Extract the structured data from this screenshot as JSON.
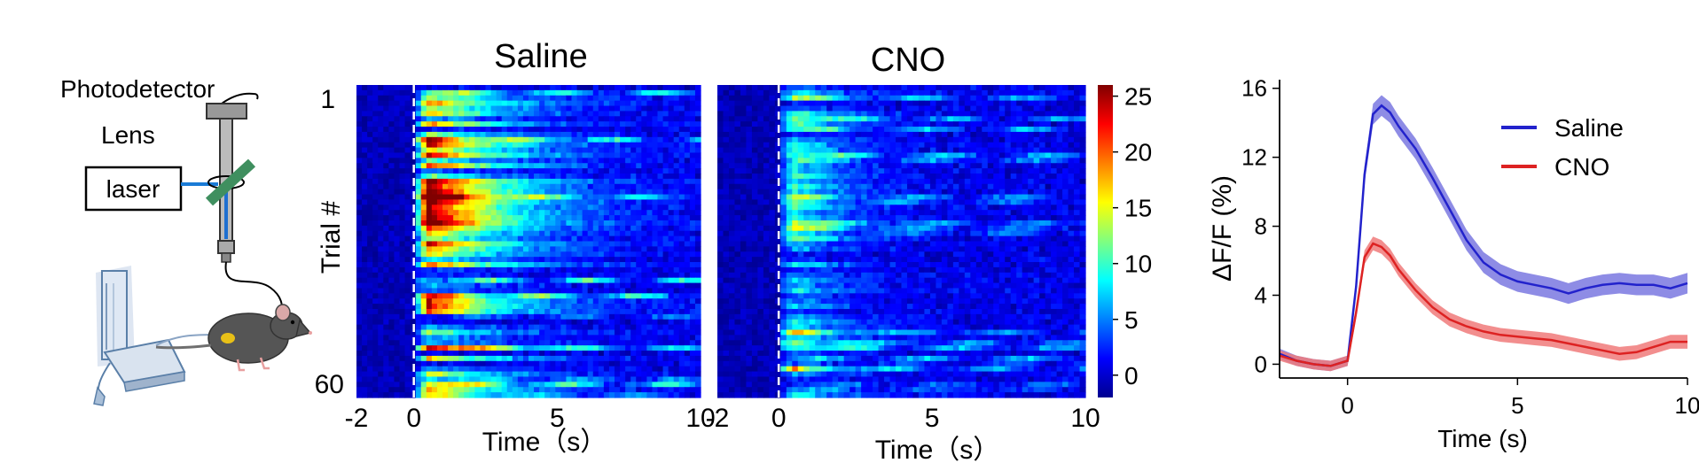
{
  "setup": {
    "photodetector_label": "Photodetector",
    "lens_label": "Lens",
    "laser_label": "laser"
  },
  "colors": {
    "laser_line": "#1a7bd6",
    "filter": "#3f8f5f",
    "saline_line": "#2222cc",
    "saline_band": "#7a78e0",
    "cno_line": "#dd2222",
    "cno_band": "#f07a7a",
    "mouse_body": "#555555",
    "fiber_tube": "#1e6fd0"
  },
  "chart_data": [
    {
      "type": "heatmap",
      "title": "Saline",
      "xlabel": "Time（s）",
      "ylabel": "Trial #",
      "xlim": [
        -2,
        10
      ],
      "x_ticks": [
        -2,
        0,
        5,
        10
      ],
      "y_tick_labels": [
        "1",
        "60"
      ],
      "rows": 60,
      "stimulus_line_x": 0
    },
    {
      "type": "heatmap",
      "title": "CNO",
      "xlabel": "Time（s）",
      "xlim": [
        -2,
        10
      ],
      "x_ticks": [
        -2,
        0,
        5,
        10
      ],
      "rows": 60,
      "stimulus_line_x": 0
    },
    {
      "type": "colorbar",
      "colormap": "jet",
      "range": [
        -2,
        26
      ],
      "ticks": [
        0,
        5,
        10,
        15,
        20,
        25
      ]
    },
    {
      "type": "line",
      "xlabel": "Time (s)",
      "ylabel": "ΔF/F (%)",
      "xlim": [
        -2,
        10
      ],
      "ylim": [
        -0.8,
        16.5
      ],
      "x_ticks": [
        0,
        5,
        10
      ],
      "y_ticks": [
        0,
        4,
        8,
        12,
        16
      ],
      "legend_position": "top-right",
      "series": [
        {
          "name": "Saline",
          "x": [
            -2,
            -1.5,
            -1,
            -0.5,
            0,
            0.25,
            0.5,
            0.75,
            1,
            1.25,
            1.5,
            2,
            2.5,
            3,
            3.5,
            4,
            4.5,
            5,
            5.5,
            6,
            6.5,
            7,
            7.5,
            8,
            8.5,
            9,
            9.5,
            10
          ],
          "y": [
            0.6,
            0.2,
            0.0,
            -0.1,
            0.2,
            4.5,
            11.0,
            14.5,
            15.0,
            14.6,
            13.8,
            12.5,
            10.8,
            9.0,
            7.2,
            5.9,
            5.2,
            4.8,
            4.6,
            4.4,
            4.1,
            4.4,
            4.6,
            4.7,
            4.6,
            4.6,
            4.4,
            4.7
          ],
          "error": [
            0.3,
            0.3,
            0.3,
            0.3,
            0.3,
            0.4,
            0.5,
            0.6,
            0.6,
            0.6,
            0.6,
            0.6,
            0.6,
            0.6,
            0.6,
            0.6,
            0.6,
            0.6,
            0.6,
            0.6,
            0.6,
            0.6,
            0.6,
            0.6,
            0.6,
            0.6,
            0.6,
            0.6
          ]
        },
        {
          "name": "CNO",
          "x": [
            -2,
            -1.5,
            -1,
            -0.5,
            0,
            0.25,
            0.5,
            0.75,
            1,
            1.25,
            1.5,
            2,
            2.5,
            3,
            3.5,
            4,
            4.5,
            5,
            5.5,
            6,
            6.5,
            7,
            7.5,
            8,
            8.5,
            9,
            9.5,
            10
          ],
          "y": [
            0.5,
            0.2,
            0.0,
            -0.1,
            0.2,
            3.0,
            6.2,
            7.0,
            6.8,
            6.3,
            5.5,
            4.3,
            3.3,
            2.6,
            2.2,
            1.9,
            1.7,
            1.6,
            1.5,
            1.4,
            1.2,
            1.0,
            0.8,
            0.6,
            0.7,
            1.0,
            1.3,
            1.3
          ],
          "error": [
            0.3,
            0.3,
            0.3,
            0.3,
            0.3,
            0.35,
            0.4,
            0.4,
            0.4,
            0.4,
            0.4,
            0.4,
            0.4,
            0.4,
            0.4,
            0.4,
            0.4,
            0.4,
            0.4,
            0.4,
            0.4,
            0.4,
            0.4,
            0.4,
            0.4,
            0.4,
            0.4,
            0.4
          ]
        }
      ]
    }
  ]
}
